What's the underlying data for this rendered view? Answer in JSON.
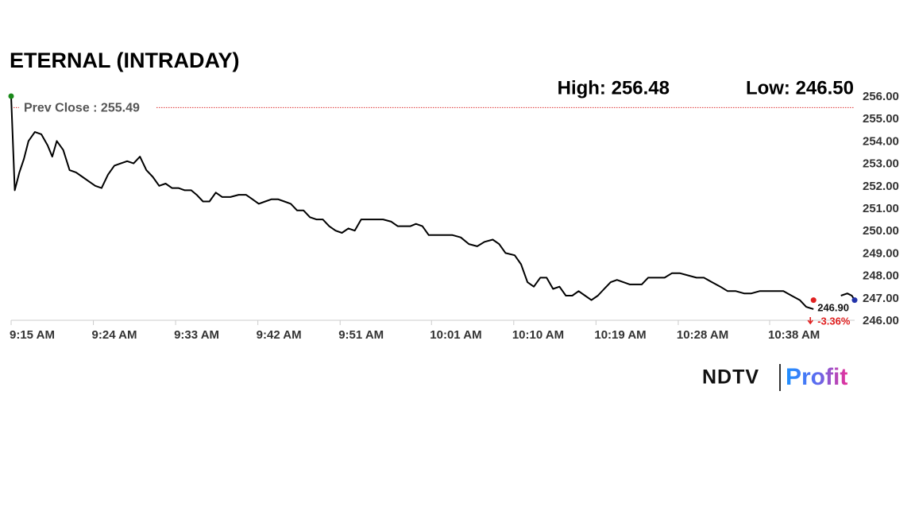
{
  "chart_data": {
    "type": "line",
    "title": "ETERNAL (INTRADAY)",
    "high": {
      "value": 256.48,
      "label": "High: 256.48"
    },
    "low": {
      "value": 246.5,
      "label": "Low: 246.50"
    },
    "prev_close": {
      "value": 255.49,
      "label": "Prev Close : 255.49"
    },
    "last_price": {
      "value": 246.9,
      "label": "246.90"
    },
    "change": {
      "value": -3.36,
      "label": "-3.36%"
    },
    "color": "#000000",
    "x": [
      0,
      0.4,
      0.9,
      1.4,
      1.9,
      2.6,
      3.3,
      4.0,
      4.5,
      5.0,
      5.7,
      6.4,
      7.1,
      7.8,
      8.5,
      9.2,
      9.9,
      10.6,
      11.3,
      12.0,
      12.7,
      13.4,
      14.1,
      14.8,
      15.5,
      16.2,
      16.9,
      17.6,
      18.3,
      19.0,
      19.7,
      20.3,
      21.0,
      21.7,
      22.4,
      23.1,
      24.0,
      24.9,
      25.7,
      26.4,
      27.1,
      27.8,
      28.5,
      29.2,
      29.9,
      30.6,
      31.3,
      32.0,
      32.7,
      33.4,
      34.1,
      34.8,
      35.5,
      36.2,
      36.9,
      37.6,
      38.3,
      39.0,
      39.8,
      40.7,
      41.6,
      42.3,
      43.0,
      43.7,
      44.3,
      45.0,
      45.7,
      46.6,
      47.5,
      48.3,
      49.2,
      50.1,
      51.0,
      51.8,
      52.7,
      53.4,
      54.1,
      55.1,
      55.8,
      56.5,
      57.2,
      57.9,
      58.6,
      59.3,
      60.0,
      60.7,
      61.4,
      62.1,
      62.8,
      63.5,
      64.2,
      64.9,
      65.6,
      66.3,
      67.0,
      67.7,
      68.3,
      69.0,
      69.7,
      70.6,
      71.5,
      72.3,
      73.2,
      74.1,
      75.0,
      75.8,
      76.7,
      77.6,
      78.4,
      79.3,
      80.2,
      81.0,
      81.9,
      82.8,
      83.7,
      84.5,
      85.4,
      86.3,
      87.0,
      87.8,
      89.5,
      90.8,
      91.5,
      92.0,
      92.3
    ],
    "values": [
      256.0,
      251.8,
      252.6,
      253.2,
      254.0,
      254.4,
      254.3,
      253.8,
      253.3,
      254.0,
      253.6,
      252.7,
      252.6,
      252.4,
      252.2,
      252.0,
      251.9,
      252.5,
      252.9,
      253.0,
      253.1,
      253.0,
      253.3,
      252.7,
      252.4,
      252.0,
      252.1,
      251.9,
      251.9,
      251.8,
      251.8,
      251.6,
      251.3,
      251.3,
      251.7,
      251.5,
      251.5,
      251.6,
      251.6,
      251.4,
      251.2,
      251.3,
      251.4,
      251.4,
      251.3,
      251.2,
      250.9,
      250.9,
      250.6,
      250.5,
      250.5,
      250.2,
      250.0,
      249.9,
      250.1,
      250.0,
      250.5,
      250.5,
      250.5,
      250.5,
      250.4,
      250.2,
      250.2,
      250.2,
      250.3,
      250.2,
      249.8,
      249.8,
      249.8,
      249.8,
      249.7,
      249.4,
      249.3,
      249.5,
      249.6,
      249.4,
      249.0,
      248.9,
      248.5,
      247.7,
      247.5,
      247.9,
      247.9,
      247.4,
      247.5,
      247.1,
      247.1,
      247.3,
      247.1,
      246.9,
      247.1,
      247.4,
      247.7,
      247.8,
      247.7,
      247.6,
      247.6,
      247.6,
      247.9,
      247.9,
      247.9,
      248.1,
      248.1,
      248.0,
      247.9,
      247.9,
      247.7,
      247.5,
      247.3,
      247.3,
      247.2,
      247.2,
      247.3,
      247.3,
      247.3,
      247.3,
      247.1,
      246.9,
      246.6,
      246.5,
      null,
      247.1,
      247.2,
      247.1,
      246.9
    ],
    "xlim": [
      0,
      92.3
    ],
    "xticks": [
      {
        "value": 0,
        "label": "9:15 AM"
      },
      {
        "value": 9,
        "label": "9:24 AM"
      },
      {
        "value": 18,
        "label": "9:33 AM"
      },
      {
        "value": 27,
        "label": "9:42 AM"
      },
      {
        "value": 36,
        "label": "9:51 AM"
      },
      {
        "value": 46,
        "label": "10:01 AM"
      },
      {
        "value": 55,
        "label": "10:10 AM"
      },
      {
        "value": 64,
        "label": "10:19 AM"
      },
      {
        "value": 73,
        "label": "10:28 AM"
      },
      {
        "value": 83,
        "label": "10:38 AM"
      }
    ],
    "ylim": [
      246,
      256
    ],
    "yticks": [
      {
        "value": 256,
        "label": "256.00"
      },
      {
        "value": 255,
        "label": "255.00"
      },
      {
        "value": 254,
        "label": "254.00"
      },
      {
        "value": 253,
        "label": "253.00"
      },
      {
        "value": 252,
        "label": "252.00"
      },
      {
        "value": 251,
        "label": "251.00"
      },
      {
        "value": 250,
        "label": "250.00"
      },
      {
        "value": 249,
        "label": "249.00"
      },
      {
        "value": 248,
        "label": "248.00"
      },
      {
        "value": 247,
        "label": "247.00"
      },
      {
        "value": 246,
        "label": "246.00"
      }
    ],
    "logo": {
      "brand": "NDTV",
      "product": "Profit"
    }
  }
}
